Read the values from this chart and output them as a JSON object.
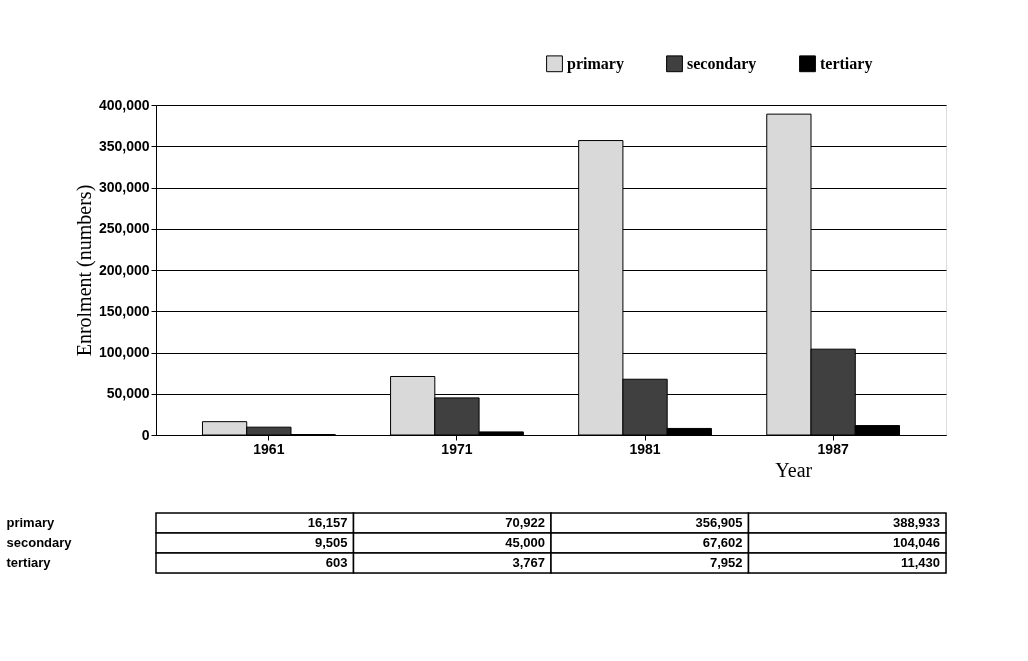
{
  "chart_data": {
    "type": "bar",
    "xlabel": "Year",
    "ylabel": "Enrolment (numbers)",
    "categories": [
      "1961",
      "1971",
      "1981",
      "1987"
    ],
    "series": [
      {
        "name": "primary",
        "color": "#d9d9d9",
        "values": [
          16157,
          70922,
          356905,
          388933
        ],
        "value_labels": [
          "16,157",
          "70,922",
          "356,905",
          "388,933"
        ]
      },
      {
        "name": "secondary",
        "color": "#404040",
        "values": [
          9505,
          45000,
          67602,
          104046
        ],
        "value_labels": [
          "9,505",
          "45,000",
          "67,602",
          "104,046"
        ]
      },
      {
        "name": "tertiary",
        "color": "#000000",
        "values": [
          603,
          3767,
          7952,
          11430
        ],
        "value_labels": [
          "603",
          "3,767",
          "7,952",
          "11,430"
        ]
      }
    ],
    "ylim": [
      0,
      400000
    ],
    "yticks": [
      0,
      {
        "value": 50000,
        "label": "50,000"
      },
      {
        "value": 100000,
        "label": "100,000"
      },
      {
        "value": 150000,
        "label": "150,000"
      },
      {
        "value": 200000,
        "label": "200,000"
      },
      {
        "value": 250000,
        "label": "250,000"
      },
      {
        "value": 300000,
        "label": "300,000"
      },
      {
        "value": 350000,
        "label": "350,000"
      },
      {
        "value": 400000,
        "label": "400,000"
      }
    ],
    "grid": "y",
    "legend": "top right"
  }
}
